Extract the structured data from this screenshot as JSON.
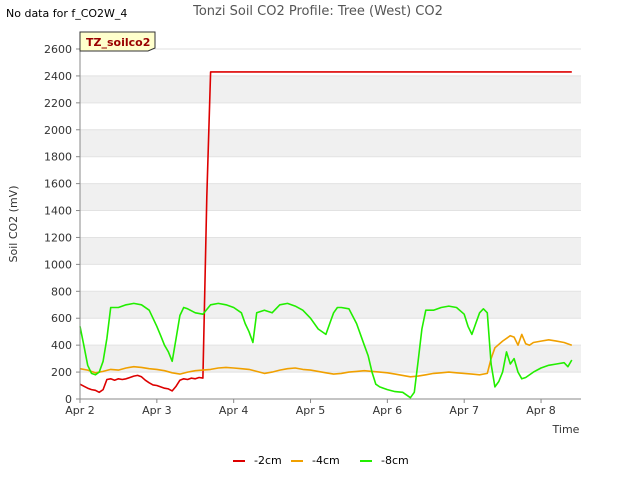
{
  "chart_data": {
    "type": "line",
    "title": "Tonzi Soil CO2 Profile: Tree (West) CO2",
    "note": "No data for f_CO2W_4",
    "box_label": "TZ_soilco2",
    "xlabel": "Time",
    "ylabel": "Soil CO2 (mV)",
    "ylim": [
      0,
      2600
    ],
    "xlim": [
      2.0,
      8.52
    ],
    "y_ticks": [
      0,
      200,
      400,
      600,
      800,
      1000,
      1200,
      1400,
      1600,
      1800,
      2000,
      2200,
      2400,
      2600
    ],
    "x_ticks": [
      {
        "value": 2,
        "label": "Apr 2"
      },
      {
        "value": 3,
        "label": "Apr 3"
      },
      {
        "value": 4,
        "label": "Apr 4"
      },
      {
        "value": 5,
        "label": "Apr 5"
      },
      {
        "value": 6,
        "label": "Apr 6"
      },
      {
        "value": 7,
        "label": "Apr 7"
      },
      {
        "value": 8,
        "label": "Apr 8"
      }
    ],
    "grid": "horizontal bands",
    "legend_position": "bottom",
    "series": [
      {
        "name": "-2cm",
        "color": "#dd0000",
        "x": [
          2.0,
          2.05,
          2.1,
          2.15,
          2.2,
          2.25,
          2.3,
          2.35,
          2.4,
          2.45,
          2.5,
          2.55,
          2.6,
          2.65,
          2.7,
          2.75,
          2.8,
          2.85,
          2.9,
          2.95,
          3.0,
          3.05,
          3.1,
          3.15,
          3.2,
          3.25,
          3.3,
          3.35,
          3.4,
          3.45,
          3.5,
          3.55,
          3.6,
          3.65,
          3.7,
          3.75,
          3.82,
          3.9,
          4.0,
          5.0,
          6.0,
          7.0,
          8.0,
          8.4
        ],
        "y": [
          110,
          95,
          80,
          70,
          65,
          50,
          70,
          145,
          150,
          140,
          150,
          145,
          150,
          160,
          170,
          175,
          165,
          140,
          120,
          105,
          100,
          90,
          80,
          75,
          60,
          95,
          140,
          150,
          145,
          155,
          150,
          160,
          155,
          1500,
          2430,
          2430,
          2430,
          2430,
          2430,
          2430,
          2430,
          2430,
          2430,
          2430
        ]
      },
      {
        "name": "-4cm",
        "color": "#f0a000",
        "x": [
          2.0,
          2.1,
          2.2,
          2.3,
          2.4,
          2.5,
          2.6,
          2.7,
          2.8,
          2.9,
          3.0,
          3.1,
          3.2,
          3.3,
          3.4,
          3.5,
          3.6,
          3.7,
          3.8,
          3.9,
          4.0,
          4.1,
          4.2,
          4.3,
          4.4,
          4.5,
          4.6,
          4.7,
          4.8,
          4.9,
          5.0,
          5.1,
          5.2,
          5.3,
          5.4,
          5.5,
          5.6,
          5.7,
          5.8,
          5.9,
          6.0,
          6.1,
          6.2,
          6.3,
          6.4,
          6.5,
          6.6,
          6.7,
          6.8,
          6.9,
          7.0,
          7.1,
          7.2,
          7.3,
          7.35,
          7.4,
          7.5,
          7.6,
          7.65,
          7.7,
          7.75,
          7.8,
          7.85,
          7.9,
          8.0,
          8.1,
          8.2,
          8.3,
          8.4
        ],
        "y": [
          225,
          215,
          195,
          205,
          220,
          215,
          230,
          240,
          235,
          225,
          220,
          210,
          195,
          185,
          200,
          210,
          215,
          220,
          230,
          235,
          230,
          225,
          220,
          205,
          190,
          200,
          215,
          225,
          230,
          220,
          215,
          205,
          195,
          185,
          190,
          200,
          205,
          210,
          205,
          200,
          195,
          185,
          175,
          165,
          170,
          180,
          190,
          195,
          200,
          195,
          190,
          185,
          180,
          190,
          300,
          380,
          430,
          470,
          460,
          400,
          480,
          410,
          400,
          420,
          430,
          440,
          430,
          420,
          400
        ]
      },
      {
        "name": "-8cm",
        "color": "#22ee00",
        "x": [
          2.0,
          2.05,
          2.1,
          2.15,
          2.2,
          2.25,
          2.3,
          2.35,
          2.4,
          2.5,
          2.6,
          2.7,
          2.8,
          2.9,
          3.0,
          3.05,
          3.1,
          3.15,
          3.2,
          3.25,
          3.3,
          3.35,
          3.4,
          3.5,
          3.6,
          3.7,
          3.8,
          3.9,
          4.0,
          4.1,
          4.15,
          4.2,
          4.25,
          4.3,
          4.4,
          4.5,
          4.6,
          4.7,
          4.8,
          4.9,
          5.0,
          5.1,
          5.2,
          5.25,
          5.3,
          5.35,
          5.4,
          5.5,
          5.6,
          5.7,
          5.75,
          5.8,
          5.85,
          5.9,
          5.95,
          6.0,
          6.1,
          6.2,
          6.3,
          6.35,
          6.4,
          6.45,
          6.5,
          6.6,
          6.7,
          6.8,
          6.9,
          7.0,
          7.05,
          7.1,
          7.15,
          7.2,
          7.25,
          7.3,
          7.35,
          7.4,
          7.45,
          7.5,
          7.55,
          7.6,
          7.65,
          7.7,
          7.75,
          7.8,
          7.9,
          8.0,
          8.1,
          8.2,
          8.3,
          8.35,
          8.4
        ],
        "y": [
          540,
          400,
          250,
          190,
          180,
          200,
          280,
          450,
          680,
          680,
          700,
          710,
          700,
          660,
          540,
          470,
          400,
          350,
          280,
          450,
          620,
          680,
          670,
          640,
          630,
          700,
          710,
          700,
          680,
          640,
          560,
          500,
          420,
          640,
          660,
          640,
          700,
          710,
          690,
          660,
          600,
          520,
          480,
          560,
          640,
          680,
          680,
          670,
          560,
          400,
          320,
          200,
          110,
          90,
          80,
          70,
          55,
          50,
          10,
          50,
          280,
          520,
          660,
          660,
          680,
          690,
          680,
          630,
          540,
          480,
          560,
          640,
          670,
          640,
          260,
          90,
          130,
          200,
          350,
          260,
          300,
          200,
          150,
          160,
          200,
          230,
          250,
          260,
          270,
          240,
          290
        ]
      }
    ]
  }
}
